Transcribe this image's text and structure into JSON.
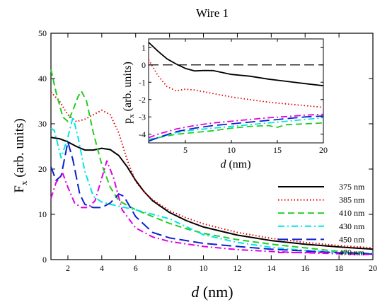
{
  "chart_data": [
    {
      "id": "main",
      "type": "line",
      "title": "Wire 1",
      "xlabel": "d (nm)",
      "ylabel": "F_x (arb. units)",
      "xlim": [
        1,
        20
      ],
      "ylim": [
        0,
        50
      ],
      "xticks": [
        2,
        4,
        6,
        8,
        10,
        12,
        14,
        16,
        18,
        20
      ],
      "yticks": [
        0,
        10,
        20,
        30,
        40,
        50
      ],
      "legend_position": "right",
      "series": [
        {
          "name": "375 nm",
          "color": "#000000",
          "dash": "solid",
          "x": [
            1,
            1.5,
            2,
            2.5,
            3,
            3.5,
            4,
            4.5,
            5,
            5.5,
            6,
            6.5,
            7,
            8,
            9,
            10,
            12,
            14,
            16,
            18,
            20
          ],
          "y": [
            27,
            26.7,
            26,
            25,
            24.2,
            24.2,
            24.6,
            24.3,
            23,
            20.5,
            17.5,
            15,
            13,
            10.4,
            8.6,
            7.2,
            5.4,
            4.2,
            3.4,
            2.8,
            2.3
          ]
        },
        {
          "name": "385 nm",
          "color": "#e00000",
          "dash": "dot",
          "x": [
            1,
            1.5,
            2,
            2.5,
            3,
            3.5,
            4,
            4.5,
            5,
            5.5,
            6,
            6.5,
            7,
            8,
            9,
            10,
            12,
            14,
            16,
            18,
            20
          ],
          "y": [
            37,
            35,
            32,
            30.5,
            31,
            32,
            33,
            32,
            28,
            22,
            17.2,
            15,
            13.2,
            10.8,
            9.2,
            7.9,
            6,
            4.7,
            3.8,
            3.1,
            2.6
          ]
        },
        {
          "name": "410 nm",
          "color": "#22cc22",
          "dash": "dash",
          "x": [
            1,
            1.3,
            1.7,
            2,
            2.3,
            2.6,
            2.8,
            3.1,
            3.5,
            4,
            4.5,
            5,
            6,
            7,
            8,
            9,
            10,
            12,
            14,
            16,
            18,
            20
          ],
          "y": [
            42,
            37,
            31.5,
            30.5,
            33,
            36,
            37.2,
            35,
            28,
            21,
            16,
            13,
            11,
            9.5,
            8,
            6.8,
            5.8,
            4.4,
            3.4,
            2.6,
            1.8,
            1.3
          ]
        },
        {
          "name": "430 nm",
          "color": "#00e5e5",
          "dash": "dashdot",
          "x": [
            1,
            1.2,
            1.6,
            2,
            2.3,
            2.6,
            3,
            3.5,
            4,
            5,
            6,
            7,
            8,
            10,
            12,
            14,
            16,
            18,
            20
          ],
          "y": [
            29,
            28.5,
            22.5,
            27,
            31.5,
            27,
            19.5,
            14,
            12.7,
            11.8,
            11,
            10,
            9,
            5.5,
            3.8,
            2.7,
            2,
            1.6,
            1.4
          ]
        },
        {
          "name": "450 nm",
          "color": "#0a1ed0",
          "dash": "longdash",
          "x": [
            1,
            1.3,
            1.6,
            2,
            2.3,
            2.7,
            3,
            3.5,
            4,
            4.5,
            5,
            5.3,
            6,
            7,
            8,
            10,
            12,
            14,
            16,
            18,
            20
          ],
          "y": [
            20.5,
            17.5,
            18.5,
            26,
            22,
            14.5,
            12.2,
            11.5,
            11.5,
            12.5,
            14.5,
            14,
            9.5,
            6,
            4.8,
            3.6,
            2.9,
            2.3,
            1.9,
            1.5,
            1.2
          ]
        },
        {
          "name": "470 nm",
          "color": "#e000e0",
          "dash": "dashdot",
          "x": [
            1,
            1.3,
            1.7,
            2,
            2.4,
            2.8,
            3.2,
            3.6,
            4,
            4.3,
            4.7,
            5.2,
            6,
            7,
            8,
            10,
            12,
            14,
            16,
            18,
            20
          ],
          "y": [
            13.5,
            17,
            19,
            16,
            12.5,
            11.5,
            11.5,
            13,
            18,
            21.8,
            18,
            11,
            7,
            5,
            4,
            2.9,
            2.2,
            1.8,
            1.5,
            1.3,
            1.1
          ]
        }
      ]
    },
    {
      "id": "inset",
      "type": "line",
      "title": "",
      "xlabel": "d (nm)",
      "ylabel": "p_x (arb. units)",
      "xlim": [
        1,
        20
      ],
      "ylim": [
        -4.5,
        1.5
      ],
      "xticks": [
        5,
        10,
        15,
        20
      ],
      "yticks": [
        1,
        0,
        -1,
        -2,
        -3,
        -4
      ],
      "reference_line": {
        "y": 0,
        "color": "#000000",
        "dash": "longdash"
      },
      "series": [
        {
          "name": "375 nm",
          "color": "#000000",
          "dash": "solid",
          "x": [
            1,
            2,
            3,
            4,
            5,
            6,
            7,
            8,
            10,
            12,
            14,
            16,
            18,
            20
          ],
          "y": [
            1.3,
            0.8,
            0.35,
            0.05,
            -0.2,
            -0.35,
            -0.32,
            -0.33,
            -0.55,
            -0.65,
            -0.82,
            -0.95,
            -1.08,
            -1.2
          ]
        },
        {
          "name": "385 nm",
          "color": "#e00000",
          "dash": "dot",
          "x": [
            1,
            2,
            3,
            4,
            5,
            6,
            7,
            8,
            10,
            12,
            14,
            16,
            18,
            20
          ],
          "y": [
            0.3,
            -0.6,
            -1.25,
            -1.5,
            -1.4,
            -1.45,
            -1.55,
            -1.65,
            -1.85,
            -2.0,
            -2.15,
            -2.25,
            -2.35,
            -2.45
          ]
        },
        {
          "name": "410 nm",
          "color": "#22cc22",
          "dash": "dash",
          "x": [
            1,
            2,
            4,
            6,
            8,
            10,
            12,
            14,
            15,
            16,
            18,
            20
          ],
          "y": [
            -4.3,
            -4.2,
            -4.0,
            -3.9,
            -3.8,
            -3.65,
            -3.55,
            -3.5,
            -3.6,
            -3.45,
            -3.4,
            -3.35
          ]
        },
        {
          "name": "430 nm",
          "color": "#00e5e5",
          "dash": "dashdot",
          "x": [
            1,
            2,
            4,
            6,
            8,
            10,
            12,
            14,
            16,
            18,
            20
          ],
          "y": [
            -4.35,
            -4.2,
            -3.9,
            -3.75,
            -3.65,
            -3.55,
            -3.45,
            -3.35,
            -3.25,
            -3.15,
            -3.05
          ]
        },
        {
          "name": "450 nm",
          "color": "#0a1ed0",
          "dash": "longdash",
          "x": [
            1,
            2,
            4,
            6,
            8,
            10,
            12,
            14,
            16,
            18,
            20
          ],
          "y": [
            -4.4,
            -4.2,
            -3.85,
            -3.65,
            -3.5,
            -3.4,
            -3.3,
            -3.2,
            -3.1,
            -3.0,
            -2.95
          ]
        },
        {
          "name": "470 nm",
          "color": "#e000e0",
          "dash": "dashdot",
          "x": [
            1,
            2,
            4,
            6,
            8,
            10,
            12,
            14,
            16,
            18,
            20
          ],
          "y": [
            -4.2,
            -4.0,
            -3.7,
            -3.5,
            -3.35,
            -3.25,
            -3.15,
            -3.05,
            -2.98,
            -2.9,
            -2.85
          ]
        }
      ]
    }
  ]
}
